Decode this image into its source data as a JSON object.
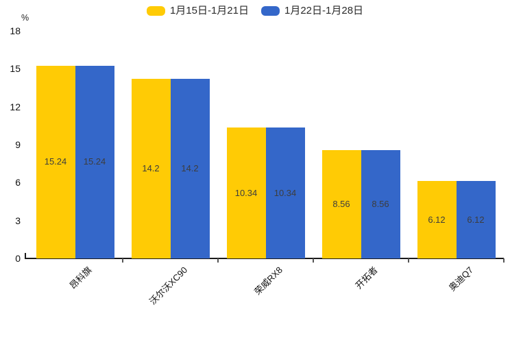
{
  "chart_data": {
    "type": "bar",
    "title": "",
    "xlabel": "",
    "ylabel": "%",
    "ylim": [
      0,
      18
    ],
    "yticks": [
      0,
      3,
      6,
      9,
      12,
      15,
      18
    ],
    "grid": false,
    "legend_position": "top-center",
    "categories": [
      "昂科旗",
      "沃尔沃XC90",
      "荣威RX8",
      "开拓者",
      "奥迪Q7"
    ],
    "series": [
      {
        "name": "1月15日-1月21日",
        "color": "#FFCB05",
        "values": [
          15.24,
          14.2,
          10.34,
          8.56,
          6.12
        ],
        "value_labels": [
          "15.24",
          "14.2",
          "10.34",
          "8.56",
          "6.12"
        ]
      },
      {
        "name": "1月22日-1月28日",
        "color": "#3467C9",
        "values": [
          15.24,
          14.2,
          10.34,
          8.56,
          6.12
        ],
        "value_labels": [
          "15.24",
          "14.2",
          "10.34",
          "8.56",
          "6.12"
        ]
      }
    ],
    "colors": {
      "axis_line": "#1A1A1A",
      "tick_mark": "#555555",
      "value_label_text": "#3D3D3D",
      "axis_label_text": "#111111",
      "legend_text": "#2A2A2A",
      "background": "#FFFFFF"
    }
  }
}
